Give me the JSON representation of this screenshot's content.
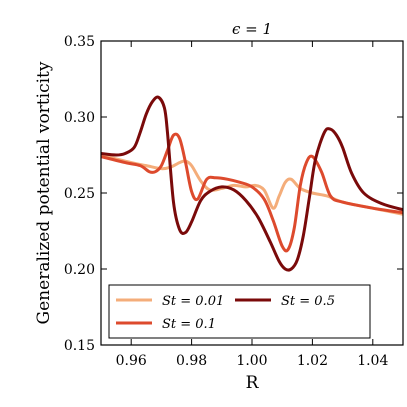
{
  "chart_data": {
    "type": "line",
    "title": "ϵ = 1",
    "xlabel": "R",
    "ylabel": "Generalized potential vorticity",
    "xlim": [
      0.95,
      1.05
    ],
    "ylim": [
      0.15,
      0.35
    ],
    "xticks": [
      0.96,
      0.98,
      1.0,
      1.02,
      1.04
    ],
    "xtick_labels": [
      "0.96",
      "0.98",
      "1.00",
      "1.02",
      "1.04"
    ],
    "yticks": [
      0.15,
      0.2,
      0.25,
      0.3,
      0.35
    ],
    "ytick_labels": [
      "0.15",
      "0.20",
      "0.25",
      "0.30",
      "0.35"
    ],
    "grid": false,
    "legend_position": "bottom",
    "series": [
      {
        "name": "St = 0.01",
        "color": "#f4ad7a",
        "x": [
          0.95,
          0.96,
          0.965,
          0.97,
          0.973,
          0.976,
          0.978,
          0.98,
          0.983,
          0.986,
          0.99,
          0.994,
          0.998,
          1.001,
          1.004,
          1.007,
          1.009,
          1.011,
          1.013,
          1.016,
          1.02,
          1.025,
          1.03,
          1.04,
          1.05
        ],
        "y": [
          0.275,
          0.27,
          0.268,
          0.266,
          0.267,
          0.27,
          0.271,
          0.268,
          0.258,
          0.252,
          0.253,
          0.255,
          0.254,
          0.255,
          0.252,
          0.24,
          0.248,
          0.257,
          0.259,
          0.253,
          0.25,
          0.248,
          0.244,
          0.24,
          0.236
        ]
      },
      {
        "name": "St = 0.1",
        "color": "#dd4a2d",
        "x": [
          0.95,
          0.958,
          0.963,
          0.966,
          0.968,
          0.97,
          0.972,
          0.974,
          0.976,
          0.978,
          0.98,
          0.982,
          0.985,
          0.988,
          0.992,
          0.996,
          1.0,
          1.004,
          1.007,
          1.01,
          1.012,
          1.014,
          1.016,
          1.018,
          1.02,
          1.023,
          1.026,
          1.03,
          1.04,
          1.05
        ],
        "y": [
          0.274,
          0.27,
          0.268,
          0.264,
          0.264,
          0.268,
          0.278,
          0.288,
          0.286,
          0.27,
          0.251,
          0.246,
          0.259,
          0.26,
          0.259,
          0.257,
          0.254,
          0.246,
          0.232,
          0.215,
          0.213,
          0.227,
          0.255,
          0.27,
          0.274,
          0.264,
          0.248,
          0.244,
          0.24,
          0.237
        ]
      },
      {
        "name": "St = 0.5",
        "color": "#7a0a0a",
        "x": [
          0.95,
          0.955,
          0.958,
          0.961,
          0.963,
          0.965,
          0.967,
          0.969,
          0.971,
          0.972,
          0.974,
          0.976,
          0.978,
          0.98,
          0.983,
          0.986,
          0.99,
          0.994,
          0.998,
          1.002,
          1.006,
          1.009,
          1.011,
          1.013,
          1.015,
          1.017,
          1.019,
          1.021,
          1.024,
          1.026,
          1.028,
          1.03,
          1.033,
          1.037,
          1.043,
          1.05
        ],
        "y": [
          0.276,
          0.275,
          0.276,
          0.28,
          0.29,
          0.302,
          0.31,
          0.313,
          0.306,
          0.29,
          0.244,
          0.226,
          0.224,
          0.231,
          0.245,
          0.251,
          0.254,
          0.252,
          0.245,
          0.234,
          0.218,
          0.205,
          0.2,
          0.2,
          0.206,
          0.222,
          0.247,
          0.272,
          0.29,
          0.292,
          0.288,
          0.28,
          0.263,
          0.25,
          0.243,
          0.239
        ]
      }
    ]
  }
}
